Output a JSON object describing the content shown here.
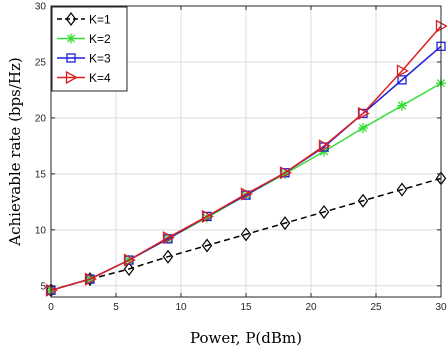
{
  "chart_data": {
    "type": "line",
    "xlabel": "Power, P(dBm)",
    "ylabel": "Achievable rate (bps/Hz)",
    "xlim": [
      0,
      30
    ],
    "ylim": [
      4,
      30
    ],
    "xticks": [
      0,
      5,
      10,
      15,
      20,
      25,
      30
    ],
    "yticks": [
      5,
      10,
      15,
      20,
      25,
      30
    ],
    "grid": true,
    "legend_position": "top-left",
    "x": [
      0,
      3,
      6,
      9,
      12,
      15,
      18,
      21,
      24,
      27,
      30
    ],
    "series": [
      {
        "name": "K=1",
        "color": "#000000",
        "line_style": "dashed",
        "marker": "diamond",
        "values": [
          4.6,
          5.6,
          6.5,
          7.6,
          8.6,
          9.6,
          10.6,
          11.6,
          12.6,
          13.6,
          14.6
        ]
      },
      {
        "name": "K=2",
        "color": "#33dd33",
        "line_style": "solid",
        "marker": "asterisk",
        "values": [
          4.6,
          5.6,
          7.3,
          9.2,
          11.1,
          13.1,
          15.0,
          17.0,
          19.1,
          21.1,
          23.1
        ]
      },
      {
        "name": "K=3",
        "color": "#1f1fdd",
        "line_style": "solid",
        "marker": "square",
        "values": [
          4.6,
          5.6,
          7.3,
          9.2,
          11.2,
          13.1,
          15.1,
          17.4,
          20.4,
          23.4,
          26.4
        ]
      },
      {
        "name": "K=4",
        "color": "#dd1f1f",
        "line_style": "solid",
        "marker": "triangle-right",
        "values": [
          4.6,
          5.6,
          7.3,
          9.3,
          11.2,
          13.2,
          15.1,
          17.5,
          20.4,
          24.2,
          28.2
        ]
      }
    ]
  }
}
